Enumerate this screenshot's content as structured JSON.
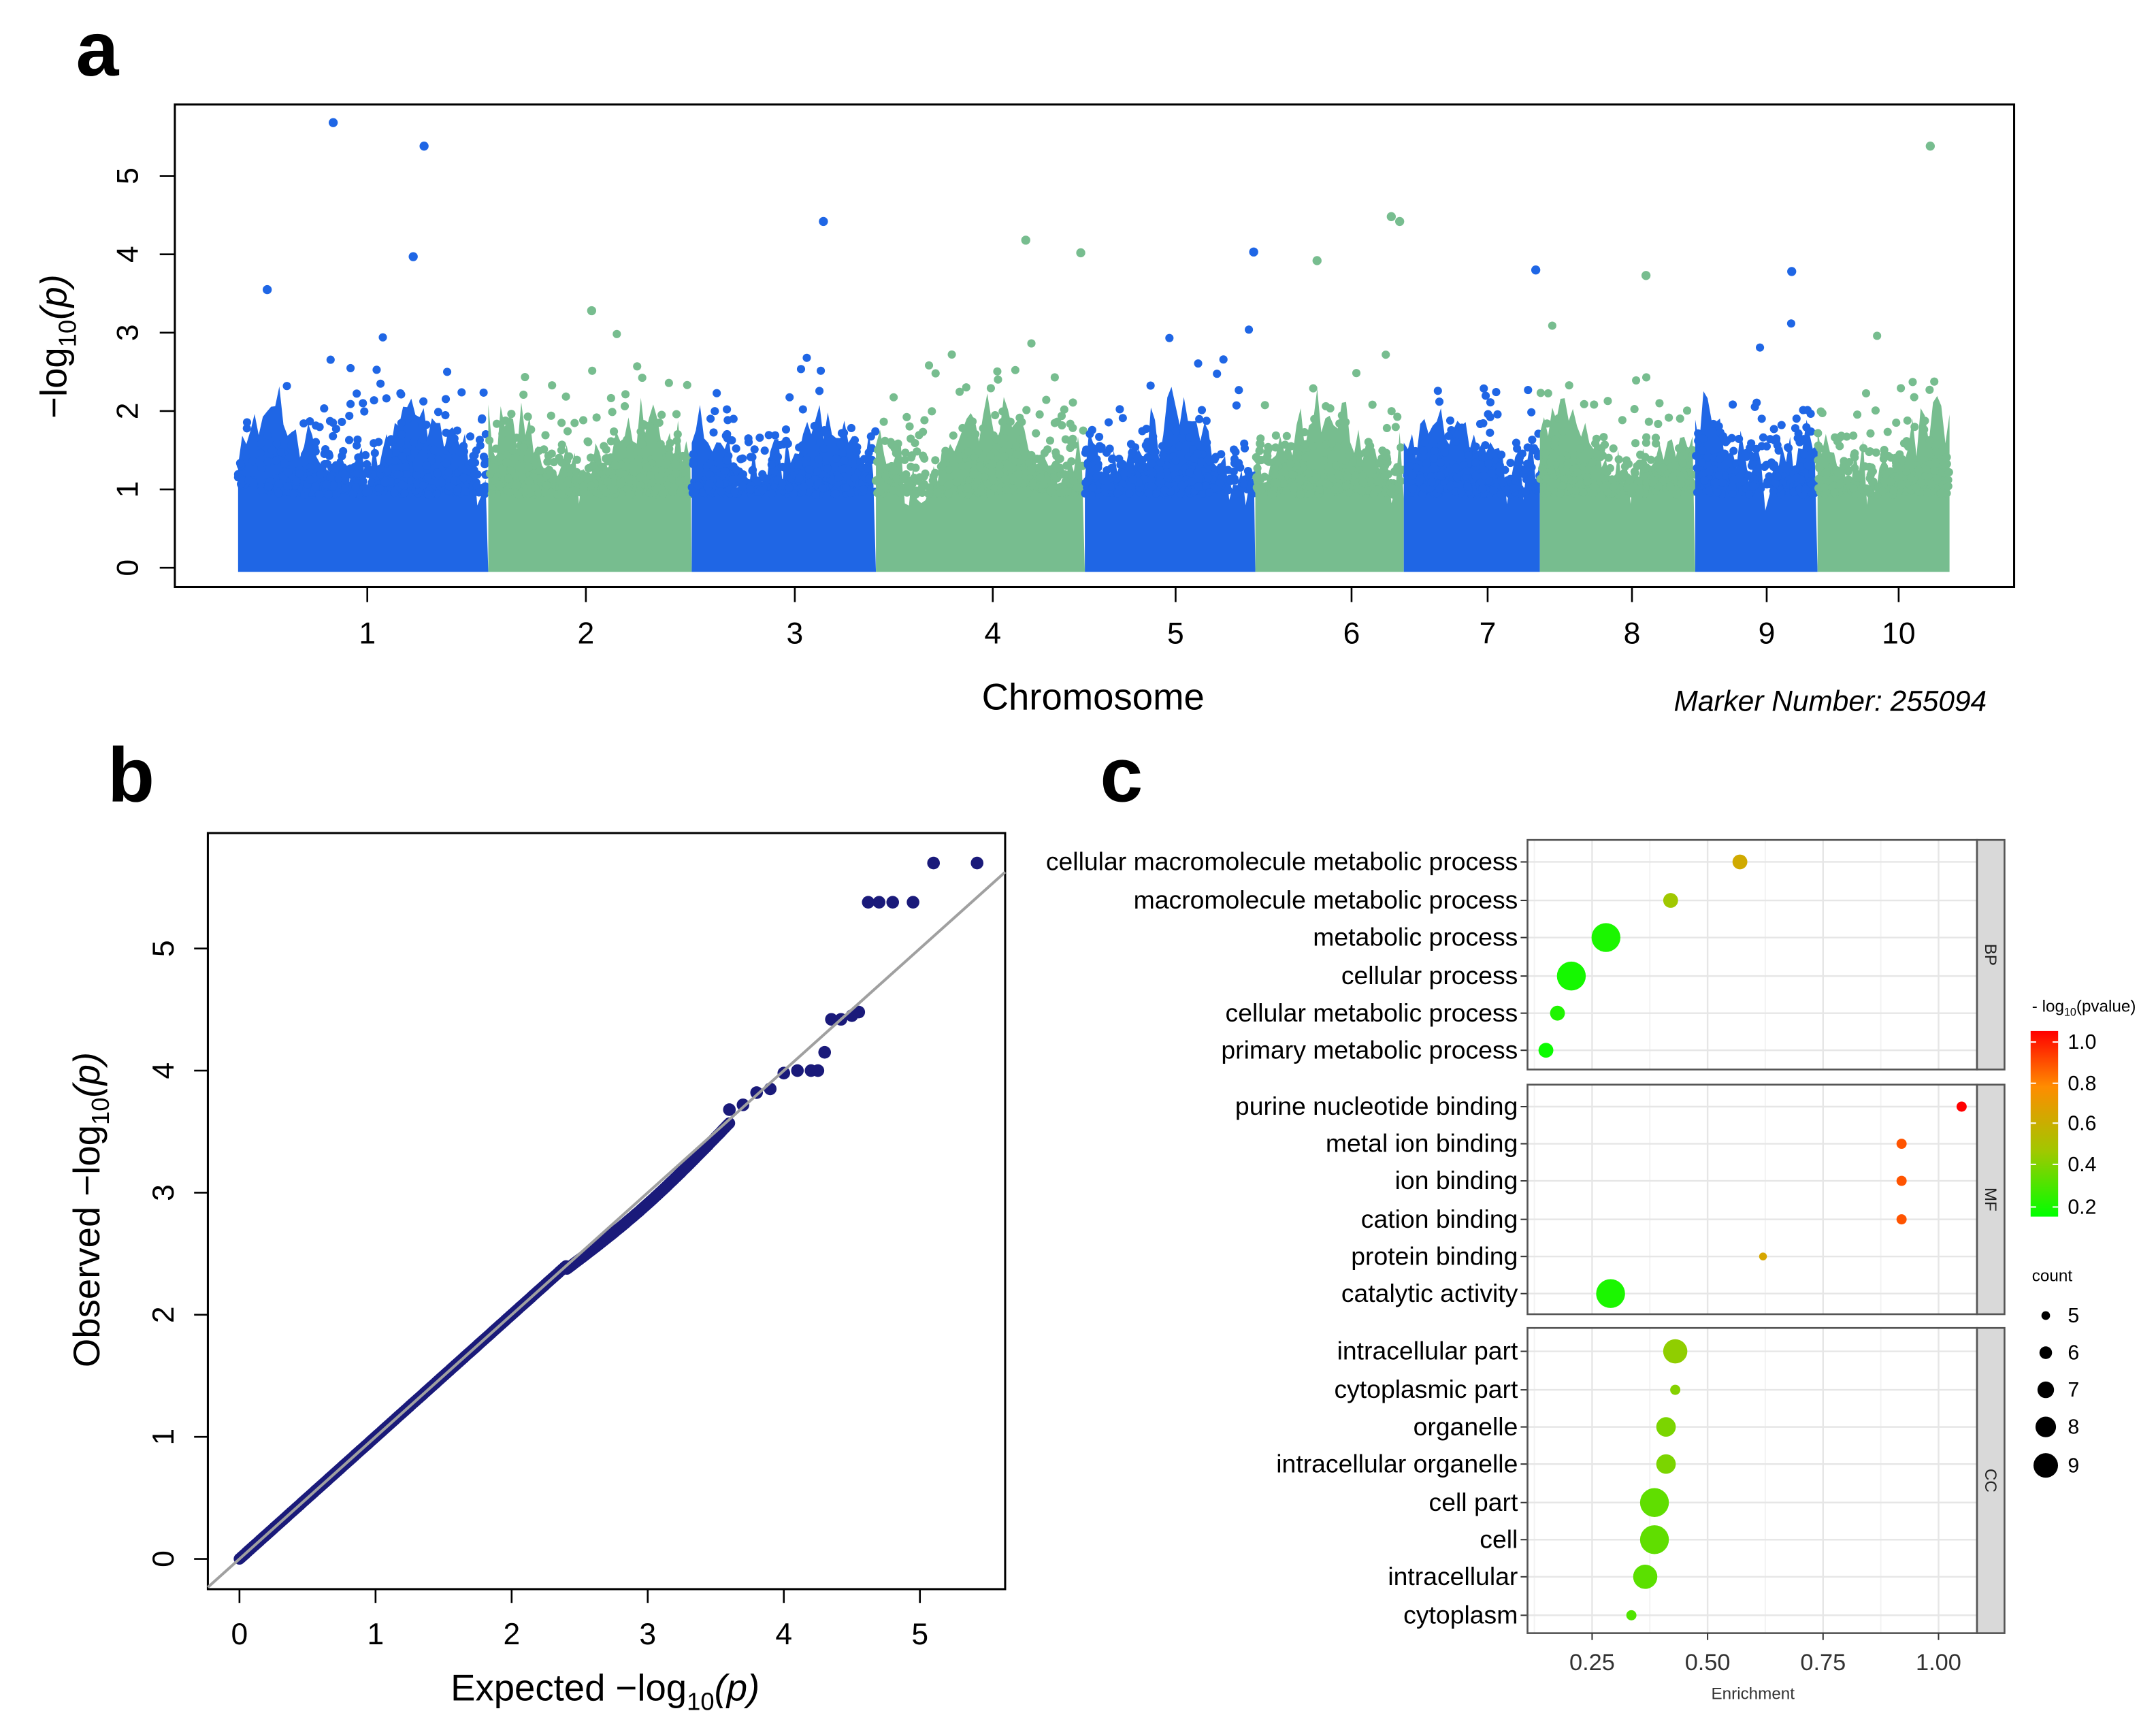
{
  "panel_labels": {
    "a": "a",
    "b": "b",
    "c": "c"
  },
  "chart_data": [
    {
      "type": "scatter",
      "subtype": "manhattan",
      "panel": "a",
      "xlabel": "Chromosome",
      "ylabel": {
        "prefix": "−log",
        "sub": "10",
        "suffix": "(p)"
      },
      "annotation": "Marker Number: 255094",
      "ylim": [
        0,
        5.8
      ],
      "yticks": [
        "0",
        "1",
        "2",
        "3",
        "4",
        "5"
      ],
      "chromosomes": [
        {
          "name": "1",
          "length_mb": 300,
          "color": "#1f66e5"
        },
        {
          "name": "2",
          "length_mb": 244,
          "color": "#77bd8f"
        },
        {
          "name": "3",
          "length_mb": 221,
          "color": "#1f66e5"
        },
        {
          "name": "4",
          "length_mb": 251,
          "color": "#77bd8f"
        },
        {
          "name": "5",
          "length_mb": 205,
          "color": "#1f66e5"
        },
        {
          "name": "6",
          "length_mb": 178,
          "color": "#77bd8f"
        },
        {
          "name": "7",
          "length_mb": 163,
          "color": "#1f66e5"
        },
        {
          "name": "8",
          "length_mb": 186,
          "color": "#77bd8f"
        },
        {
          "name": "9",
          "length_mb": 147,
          "color": "#1f66e5"
        },
        {
          "name": "10",
          "length_mb": 158,
          "color": "#77bd8f"
        }
      ],
      "peaks": [
        {
          "chr": "1",
          "pos_mb": 35,
          "logp": 3.55
        },
        {
          "chr": "1",
          "pos_mb": 114,
          "logp": 5.68
        },
        {
          "chr": "1",
          "pos_mb": 210,
          "logp": 3.97
        },
        {
          "chr": "1",
          "pos_mb": 223,
          "logp": 5.38
        },
        {
          "chr": "2",
          "pos_mb": 124,
          "logp": 3.28
        },
        {
          "chr": "3",
          "pos_mb": 158,
          "logp": 4.42
        },
        {
          "chr": "4",
          "pos_mb": 180,
          "logp": 4.18
        },
        {
          "chr": "4",
          "pos_mb": 246,
          "logp": 4.02
        },
        {
          "chr": "5",
          "pos_mb": 203,
          "logp": 4.03
        },
        {
          "chr": "6",
          "pos_mb": 74,
          "logp": 3.92
        },
        {
          "chr": "6",
          "pos_mb": 163,
          "logp": 4.48
        },
        {
          "chr": "6",
          "pos_mb": 173,
          "logp": 4.42
        },
        {
          "chr": "7",
          "pos_mb": 158,
          "logp": 3.8
        },
        {
          "chr": "8",
          "pos_mb": 127,
          "logp": 3.73
        },
        {
          "chr": "9",
          "pos_mb": 116,
          "logp": 3.78
        },
        {
          "chr": "10",
          "pos_mb": 135,
          "logp": 5.38
        }
      ]
    },
    {
      "type": "scatter",
      "subtype": "qq",
      "panel": "b",
      "xlabel": {
        "prefix": "Expected  −log",
        "sub": "10",
        "suffix": "(p)"
      },
      "ylabel": {
        "prefix": "Observed  −log",
        "sub": "10",
        "suffix": "(p)"
      },
      "xlim": [
        -0.2,
        5.65
      ],
      "ylim": [
        -0.25,
        5.95
      ],
      "xticks": [
        "0",
        "1",
        "2",
        "3",
        "4",
        "5"
      ],
      "yticks": [
        "0",
        "1",
        "2",
        "3",
        "4",
        "5"
      ],
      "point_color": "#1a1a7a",
      "line_color": "#a0a0a0",
      "diagonal_max_expected": 3.6,
      "upper_points": [
        [
          3.6,
          3.68
        ],
        [
          3.7,
          3.72
        ],
        [
          3.8,
          3.82
        ],
        [
          3.9,
          3.85
        ],
        [
          4.0,
          3.98
        ],
        [
          4.1,
          4.0
        ],
        [
          4.2,
          4.0
        ],
        [
          4.25,
          4.0
        ],
        [
          4.3,
          4.15
        ],
        [
          4.35,
          4.42
        ],
        [
          4.42,
          4.42
        ],
        [
          4.5,
          4.45
        ],
        [
          4.55,
          4.48
        ],
        [
          4.62,
          5.38
        ],
        [
          4.7,
          5.38
        ],
        [
          4.8,
          5.38
        ],
        [
          4.95,
          5.38
        ],
        [
          5.1,
          5.7
        ],
        [
          5.42,
          5.7
        ]
      ]
    },
    {
      "type": "scatter",
      "subtype": "go-bubble",
      "panel": "c",
      "xlabel": "Enrichment",
      "xlim": [
        0.11,
        1.1
      ],
      "xticks": [
        "0.25",
        "0.50",
        "0.75",
        "1.00"
      ],
      "color_legend": {
        "title_prefix": "- log",
        "title_sub": "10",
        "title_suffix": "(pvalue)",
        "ticks": [
          "1.0",
          "0.8",
          "0.6",
          "0.4",
          "0.2"
        ]
      },
      "size_legend": {
        "title": "count",
        "values": [
          "5",
          "6",
          "7",
          "8",
          "9"
        ]
      },
      "facets": [
        {
          "name": "BP",
          "terms": [
            {
              "term": "cellular macromolecule metabolic process",
              "enrichment": 0.57,
              "count": 6,
              "logp": 0.6
            },
            {
              "term": "macromolecule metabolic process",
              "enrichment": 0.42,
              "count": 6,
              "logp": 0.45
            },
            {
              "term": "metabolic process",
              "enrichment": 0.28,
              "count": 9,
              "logp": 0.2
            },
            {
              "term": "cellular process",
              "enrichment": 0.205,
              "count": 9,
              "logp": 0.19
            },
            {
              "term": "cellular metabolic process",
              "enrichment": 0.175,
              "count": 6,
              "logp": 0.21
            },
            {
              "term": "primary metabolic process",
              "enrichment": 0.15,
              "count": 6,
              "logp": 0.17
            }
          ]
        },
        {
          "name": "MF",
          "terms": [
            {
              "term": "purine nucleotide binding",
              "enrichment": 1.05,
              "count": 5,
              "logp": 1.0
            },
            {
              "term": "metal ion binding",
              "enrichment": 0.92,
              "count": 5,
              "logp": 0.85
            },
            {
              "term": "ion binding",
              "enrichment": 0.92,
              "count": 5,
              "logp": 0.85
            },
            {
              "term": "cation binding",
              "enrichment": 0.92,
              "count": 5,
              "logp": 0.85
            },
            {
              "term": "protein binding",
              "enrichment": 0.62,
              "count": 4.5,
              "logp": 0.62
            },
            {
              "term": "catalytic activity",
              "enrichment": 0.29,
              "count": 9,
              "logp": 0.2
            }
          ]
        },
        {
          "name": "CC",
          "terms": [
            {
              "term": "intracellular part",
              "enrichment": 0.43,
              "count": 8,
              "logp": 0.42
            },
            {
              "term": "cytoplasmic part",
              "enrichment": 0.43,
              "count": 5,
              "logp": 0.4
            },
            {
              "term": "organelle",
              "enrichment": 0.41,
              "count": 7,
              "logp": 0.38
            },
            {
              "term": "intracellular organelle",
              "enrichment": 0.41,
              "count": 7,
              "logp": 0.38
            },
            {
              "term": "cell part",
              "enrichment": 0.385,
              "count": 9,
              "logp": 0.33
            },
            {
              "term": "cell",
              "enrichment": 0.385,
              "count": 9,
              "logp": 0.33
            },
            {
              "term": "intracellular",
              "enrichment": 0.365,
              "count": 8,
              "logp": 0.32
            },
            {
              "term": "cytoplasm",
              "enrichment": 0.335,
              "count": 5,
              "logp": 0.3
            }
          ]
        }
      ]
    }
  ]
}
